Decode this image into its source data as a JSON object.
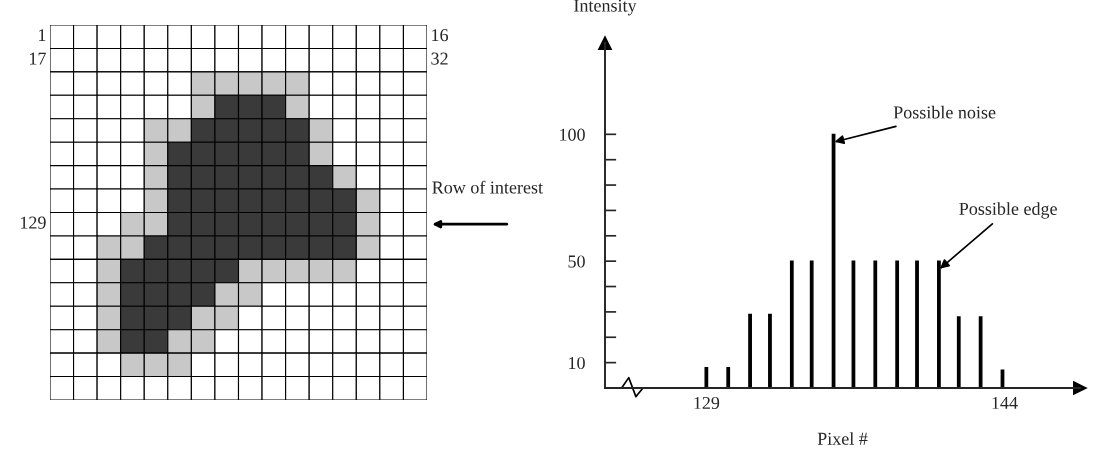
{
  "chart_data": [
    {
      "type": "other",
      "annotations": [
        "1",
        "16",
        "17",
        "32",
        "129",
        "Row of interest"
      ]
    },
    {
      "type": "bar",
      "xlabel": "Pixel #",
      "ylabel": "Intensity",
      "color": "#000000",
      "x": [
        129,
        130.1,
        131.2,
        132.2,
        133.3,
        134.3,
        135.4,
        136.4,
        137.5,
        138.6,
        139.6,
        140.7,
        141.7,
        142.8,
        143.9
      ],
      "values": [
        8,
        8,
        29,
        29,
        50,
        50,
        100,
        50,
        50,
        50,
        50,
        50,
        28,
        28,
        7
      ],
      "xlim": [
        123.9,
        147.8
      ],
      "ylim": [
        0,
        136
      ],
      "xticks": [
        129,
        144
      ],
      "yticks": [
        10,
        {
          "value": 20,
          "label": null
        },
        {
          "value": 30,
          "label": null
        },
        {
          "value": 40,
          "label": null
        },
        50,
        {
          "value": 60,
          "label": null
        },
        {
          "value": 70,
          "label": null
        },
        {
          "value": 80,
          "label": null
        },
        {
          "value": 90,
          "label": null
        },
        100
      ],
      "annotations": [
        {
          "text": "Possible noise",
          "x": 135.4,
          "y": 100
        },
        {
          "text": "Possible edge",
          "x": 140.7,
          "y": 50
        }
      ]
    }
  ]
}
